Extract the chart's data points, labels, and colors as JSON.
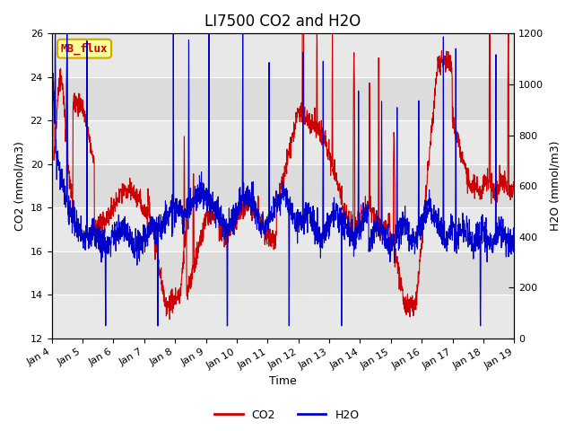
{
  "title": "LI7500 CO2 and H2O",
  "xlabel": "Time",
  "ylabel_left": "CO2 (mmol/m3)",
  "ylabel_right": "H2O (mmol/m3)",
  "co2_ylim": [
    12,
    26
  ],
  "h2o_ylim": [
    0,
    1200
  ],
  "co2_yticks": [
    12,
    14,
    16,
    18,
    20,
    22,
    24,
    26
  ],
  "h2o_yticks": [
    0,
    200,
    400,
    600,
    800,
    1000,
    1200
  ],
  "co2_color": "#cc0000",
  "h2o_color": "#0000cc",
  "background_color": "#ffffff",
  "plot_bg_color": "#f2f2f2",
  "label_box_color": "#ffff99",
  "label_box_edge": "#ccaa00",
  "label_text": "MB_flux",
  "label_text_color": "#cc0000",
  "xtick_labels": [
    "Jan 4",
    "Jan 5",
    "Jan 6",
    "Jan 7",
    "Jan 8",
    "Jan 9",
    "Jan 10",
    "Jan 11",
    "Jan 12",
    "Jan 13",
    "Jan 14",
    "Jan 15",
    "Jan 16",
    "Jan 17",
    "Jan 18",
    "Jan 19"
  ],
  "n_days": 15,
  "title_fontsize": 12,
  "axis_label_fontsize": 9,
  "tick_fontsize": 8,
  "legend_fontsize": 9
}
